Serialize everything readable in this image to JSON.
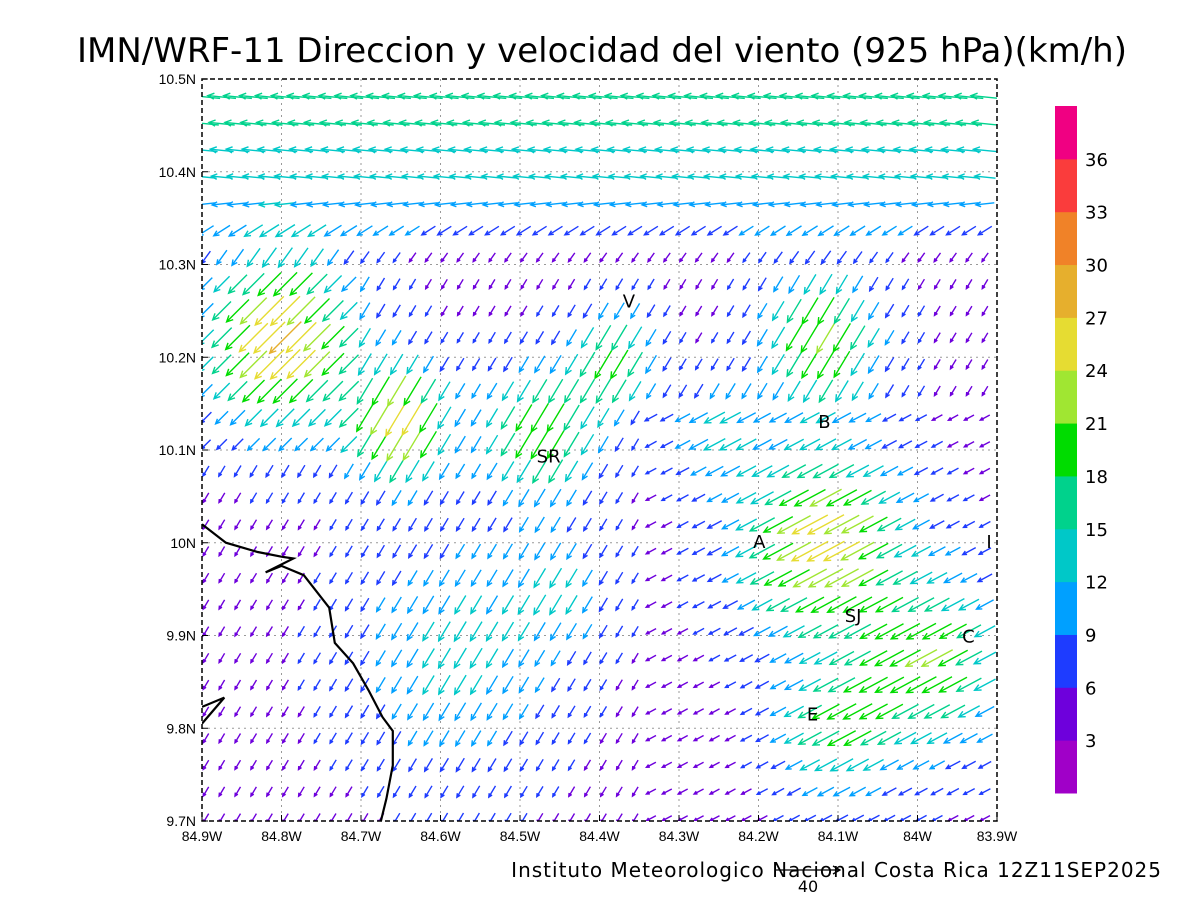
{
  "chart_data": {
    "type": "vector-field",
    "title": "IMN/WRF-11 Direccion y velocidad del viento (925 hPa)(km/h)",
    "credit": "Instituto Meteorologico Nacional Costa Rica 12Z11SEP2025",
    "reference_vector": {
      "label": "40",
      "speed": 40
    },
    "xlim": [
      -84.9,
      -83.9
    ],
    "ylim": [
      9.7,
      10.5
    ],
    "x_ticks": [
      {
        "value": -84.9,
        "label": "84.9W"
      },
      {
        "value": -84.8,
        "label": "84.8W"
      },
      {
        "value": -84.7,
        "label": "84.7W"
      },
      {
        "value": -84.6,
        "label": "84.6W"
      },
      {
        "value": -84.5,
        "label": "84.5W"
      },
      {
        "value": -84.4,
        "label": "84.4W"
      },
      {
        "value": -84.3,
        "label": "84.3W"
      },
      {
        "value": -84.2,
        "label": "84.2W"
      },
      {
        "value": -84.1,
        "label": "84.1W"
      },
      {
        "value": -84.0,
        "label": "84W"
      },
      {
        "value": -83.9,
        "label": "83.9W"
      }
    ],
    "y_ticks": [
      {
        "value": 9.7,
        "label": "9.7N"
      },
      {
        "value": 9.8,
        "label": "9.8N"
      },
      {
        "value": 9.9,
        "label": "9.9N"
      },
      {
        "value": 10.0,
        "label": "10N"
      },
      {
        "value": 10.1,
        "label": "10.1N"
      },
      {
        "value": 10.2,
        "label": "10.2N"
      },
      {
        "value": 10.3,
        "label": "10.3N"
      },
      {
        "value": 10.4,
        "label": "10.4N"
      },
      {
        "value": 10.5,
        "label": "10.5N"
      }
    ],
    "grid": true,
    "colorbar": {
      "levels": [
        3,
        6,
        9,
        12,
        15,
        18,
        21,
        24,
        27,
        30,
        33,
        36
      ],
      "colors": [
        "#a000c8",
        "#6e00dc",
        "#1e3cff",
        "#00a0ff",
        "#00c8c8",
        "#00d28c",
        "#00dc00",
        "#a0e632",
        "#e6dc32",
        "#e6af2d",
        "#f08228",
        "#fa3c3c",
        "#f00082"
      ]
    },
    "locations": [
      {
        "label": "V",
        "lon": -84.363,
        "lat": 10.26
      },
      {
        "label": "SR",
        "lon": -84.464,
        "lat": 10.093
      },
      {
        "label": "B",
        "lon": -84.117,
        "lat": 10.13
      },
      {
        "label": "A",
        "lon": -84.199,
        "lat": 10.001
      },
      {
        "label": "I",
        "lon": -83.91,
        "lat": 10.001
      },
      {
        "label": "SJ",
        "lon": -84.081,
        "lat": 9.921
      },
      {
        "label": "C",
        "lon": -83.936,
        "lat": 9.899
      },
      {
        "label": "E",
        "lon": -84.132,
        "lat": 9.815
      }
    ],
    "coastline": [
      [
        [
          -84.9,
          10.02
        ],
        [
          -84.87,
          10.0
        ],
        [
          -84.83,
          9.99
        ],
        [
          -84.8,
          9.985
        ],
        [
          -84.785,
          9.983
        ],
        [
          -84.82,
          9.968
        ],
        [
          -84.8,
          9.975
        ],
        [
          -84.772,
          9.965
        ],
        [
          -84.74,
          9.93
        ],
        [
          -84.733,
          9.892
        ],
        [
          -84.71,
          9.87
        ],
        [
          -84.69,
          9.84
        ],
        [
          -84.673,
          9.812
        ],
        [
          -84.66,
          9.797
        ],
        [
          -84.66,
          9.76
        ],
        [
          -84.668,
          9.724
        ],
        [
          -84.675,
          9.7
        ]
      ],
      [
        [
          -84.9,
          9.823
        ],
        [
          -84.872,
          9.833
        ],
        [
          -84.9,
          9.805
        ]
      ]
    ]
  }
}
